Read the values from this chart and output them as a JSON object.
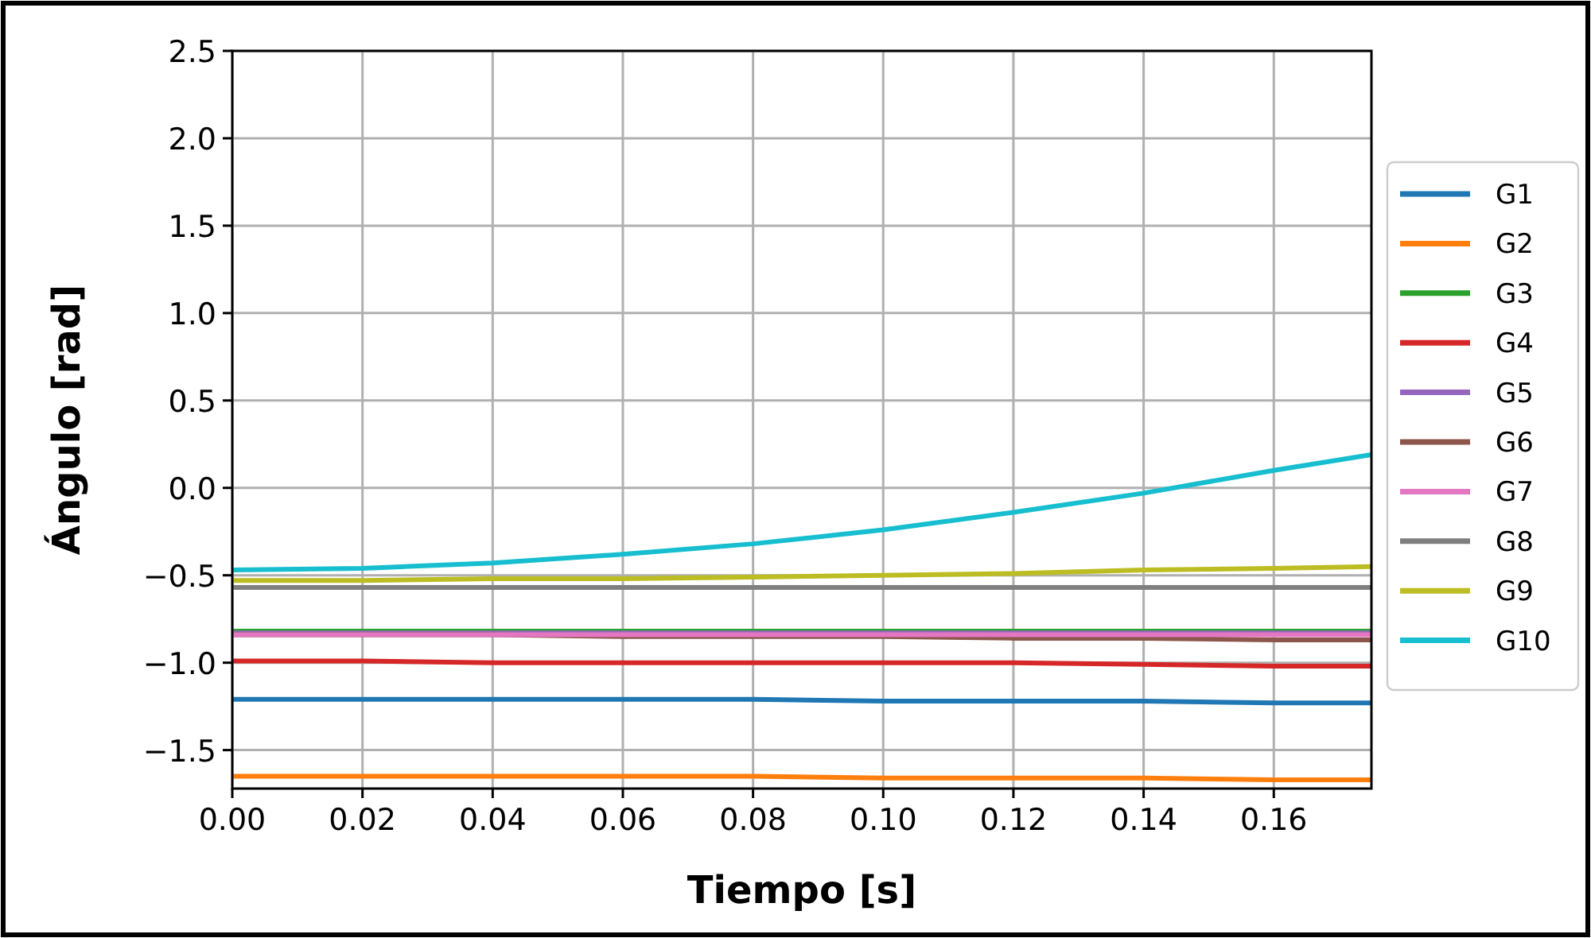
{
  "chart_data": {
    "type": "line",
    "xlabel": "Tiempo [s]",
    "ylabel": "Ángulo [rad]",
    "xlim": [
      0,
      0.175
    ],
    "ylim": [
      -1.72,
      2.5
    ],
    "xticks": [
      {
        "value": 0,
        "label": "0.00"
      },
      {
        "value": 0.02,
        "label": "0.02"
      },
      {
        "value": 0.04,
        "label": "0.04"
      },
      {
        "value": 0.06,
        "label": "0.06"
      },
      {
        "value": 0.08,
        "label": "0.08"
      },
      {
        "value": 0.1,
        "label": "0.10"
      },
      {
        "value": 0.12,
        "label": "0.12"
      },
      {
        "value": 0.14,
        "label": "0.14"
      },
      {
        "value": 0.16,
        "label": "0.16"
      }
    ],
    "yticks": [
      {
        "value": -1.5,
        "label": "−1.5"
      },
      {
        "value": -1,
        "label": "−1.0"
      },
      {
        "value": -0.5,
        "label": "−0.5"
      },
      {
        "value": 0,
        "label": "0.0"
      },
      {
        "value": 0.5,
        "label": "0.5"
      },
      {
        "value": 1,
        "label": "1.0"
      },
      {
        "value": 1.5,
        "label": "1.5"
      },
      {
        "value": 2,
        "label": "2.0"
      },
      {
        "value": 2.5,
        "label": "2.5"
      }
    ],
    "grid": true,
    "legend": "right",
    "x": [
      0,
      0.02,
      0.04,
      0.06,
      0.08,
      0.1,
      0.12,
      0.14,
      0.16,
      0.175
    ],
    "series": [
      {
        "name": "G1",
        "color": "#1f77b4",
        "values": [
          -1.21,
          -1.21,
          -1.21,
          -1.21,
          -1.21,
          -1.22,
          -1.22,
          -1.22,
          -1.23,
          -1.23
        ]
      },
      {
        "name": "G2",
        "color": "#ff7f0e",
        "values": [
          -1.65,
          -1.65,
          -1.65,
          -1.65,
          -1.65,
          -1.66,
          -1.66,
          -1.66,
          -1.67,
          -1.67
        ]
      },
      {
        "name": "G3",
        "color": "#2ca02c",
        "values": [
          -0.82,
          -0.82,
          -0.82,
          -0.82,
          -0.82,
          -0.82,
          -0.82,
          -0.82,
          -0.82,
          -0.82
        ]
      },
      {
        "name": "G4",
        "color": "#d62728",
        "values": [
          -0.99,
          -0.99,
          -1.0,
          -1.0,
          -1.0,
          -1.0,
          -1.0,
          -1.01,
          -1.02,
          -1.02
        ]
      },
      {
        "name": "G5",
        "color": "#9467bd",
        "values": [
          -0.83,
          -0.83,
          -0.83,
          -0.83,
          -0.83,
          -0.83,
          -0.83,
          -0.83,
          -0.83,
          -0.83
        ]
      },
      {
        "name": "G6",
        "color": "#8c564b",
        "values": [
          -0.84,
          -0.84,
          -0.84,
          -0.85,
          -0.85,
          -0.85,
          -0.86,
          -0.86,
          -0.87,
          -0.87
        ]
      },
      {
        "name": "G7",
        "color": "#e377c2",
        "values": [
          -0.84,
          -0.84,
          -0.84,
          -0.84,
          -0.84,
          -0.84,
          -0.84,
          -0.84,
          -0.84,
          -0.84
        ]
      },
      {
        "name": "G8",
        "color": "#7f7f7f",
        "values": [
          -0.57,
          -0.57,
          -0.57,
          -0.57,
          -0.57,
          -0.57,
          -0.57,
          -0.57,
          -0.57,
          -0.57
        ]
      },
      {
        "name": "G9",
        "color": "#bcbd22",
        "values": [
          -0.53,
          -0.53,
          -0.52,
          -0.52,
          -0.51,
          -0.5,
          -0.49,
          -0.47,
          -0.46,
          -0.45
        ]
      },
      {
        "name": "G10",
        "color": "#17becf",
        "values": [
          -0.47,
          -0.46,
          -0.43,
          -0.38,
          -0.32,
          -0.24,
          -0.14,
          -0.03,
          0.1,
          0.19
        ]
      }
    ]
  }
}
